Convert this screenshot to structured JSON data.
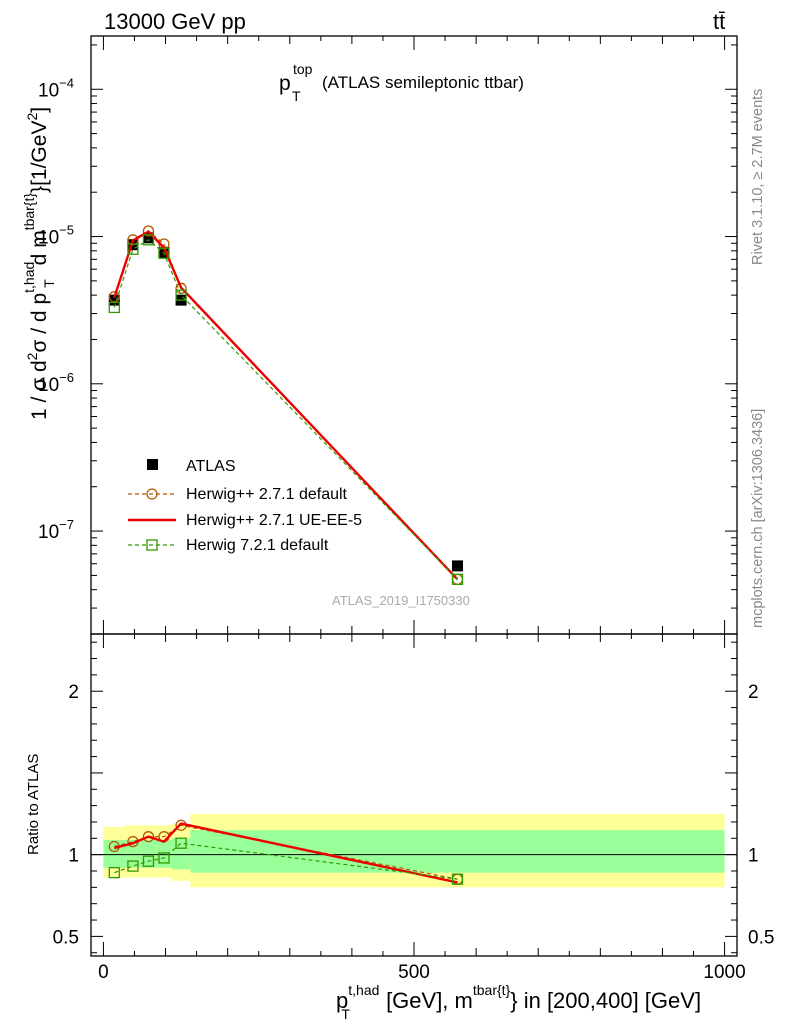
{
  "header": {
    "left": "13000 GeV pp",
    "right": "tt̄"
  },
  "side_texts": {
    "rivet": "Rivet 3.1.10, ≥ 2.7M events",
    "mcplots": "mcplots.cern.ch [arXiv:1306.3436]"
  },
  "plot": {
    "title_main": "p",
    "title_sub": "T",
    "title_sup": "top",
    "title_rest": "(ATLAS semileptonic ttbar)",
    "watermark": "ATLAS_2019_I1750330",
    "ylabel": "1 / σ d²σ / d p_T^{t,had} d m^{tbar{t}} [1/GeV²]",
    "ylabel_parts": {
      "a": "1 / σ d",
      "b": "2",
      "c": "σ / d p",
      "d": "t,had",
      "e": "T",
      "f": " d m",
      "g": "tbar{t}",
      "h": "}[1/GeV",
      "i": "2",
      "j": "]"
    },
    "ratio_ylabel": "Ratio to ATLAS",
    "xlabel_parts": {
      "a": "p",
      "b": "t,had",
      "c": "T",
      "d": " [GeV], m",
      "e": "tbar{t}",
      "f": "} in [200,400] [GeV]"
    },
    "legend": [
      {
        "label": "ATLAS",
        "color": "#000000"
      },
      {
        "label": "Herwig++ 2.7.1 default",
        "color": "#b35900"
      },
      {
        "label": "Herwig++ 2.7.1 UE-EE-5",
        "color": "#ee0000"
      },
      {
        "label": "Herwig 7.2.1 default",
        "color": "#339900"
      }
    ]
  },
  "chart_data": {
    "type": "line",
    "x_range": [
      -20,
      1020
    ],
    "y_range_main": [
      2e-08,
      0.00023
    ],
    "y_log": true,
    "y_range_ratio": [
      0.38,
      2.35
    ],
    "main_y_ticks": [
      {
        "value": 1e-07,
        "base": "10",
        "exp": "−7"
      },
      {
        "value": 1e-06,
        "base": "10",
        "exp": "−6"
      },
      {
        "value": 1e-05,
        "base": "10",
        "exp": "−5"
      },
      {
        "value": 0.0001,
        "base": "10",
        "exp": "−4"
      }
    ],
    "ratio_y_ticks": [
      {
        "value": 0.5,
        "label": "0.5"
      },
      {
        "value": 1,
        "label": "1"
      },
      {
        "value": 2,
        "label": "2"
      }
    ],
    "x_ticks": [
      {
        "value": 0,
        "label": "0"
      },
      {
        "value": 500,
        "label": "500"
      },
      {
        "value": 1000,
        "label": "1000"
      }
    ],
    "bins": [
      {
        "lo": 0,
        "hi": 35
      },
      {
        "lo": 35,
        "hi": 60
      },
      {
        "lo": 60,
        "hi": 85
      },
      {
        "lo": 85,
        "hi": 110
      },
      {
        "lo": 110,
        "hi": 140
      },
      {
        "lo": 140,
        "hi": 1000
      }
    ],
    "x": [
      17.5,
      47.5,
      72.5,
      97.5,
      125,
      570
    ],
    "series": [
      {
        "name": "ATLAS",
        "color": "#000000",
        "style": "data",
        "values": [
          3.7e-06,
          8.8e-06,
          9.8e-06,
          7.8e-06,
          3.7e-06,
          5.8e-08
        ]
      },
      {
        "name": "Herwig++ 2.7.1 default",
        "color": "#b35900",
        "style": "dashed-circle",
        "values": [
          3.9e-06,
          9.5e-06,
          1.09e-05,
          8.9e-06,
          4.45e-06,
          4.7e-08
        ],
        "ratio": [
          1.05,
          1.08,
          1.11,
          1.11,
          1.18,
          0.85
        ]
      },
      {
        "name": "Herwig++ 2.7.1 UE-EE-5",
        "color": "#ee0000",
        "style": "solid",
        "values": [
          3.85e-06,
          9.4e-06,
          1.08e-05,
          8.4e-06,
          4.5e-06,
          4.7e-08
        ],
        "ratio": [
          1.04,
          1.07,
          1.11,
          1.08,
          1.19,
          0.83
        ]
      },
      {
        "name": "Herwig 7.2.1 default",
        "color": "#339900",
        "style": "dashed-square",
        "values": [
          3.3e-06,
          8.2e-06,
          9.5e-06,
          7.7e-06,
          4e-06,
          4.7e-08
        ],
        "ratio": [
          0.89,
          0.93,
          0.96,
          0.98,
          1.07,
          0.85
        ]
      }
    ],
    "uncertainty_bands": {
      "inner": [
        [
          0.92,
          1.09
        ],
        [
          0.92,
          1.09
        ],
        [
          0.92,
          1.09
        ],
        [
          0.92,
          1.09
        ],
        [
          0.91,
          1.1
        ],
        [
          0.89,
          1.15
        ]
      ],
      "outer": [
        [
          0.86,
          1.17
        ],
        [
          0.86,
          1.18
        ],
        [
          0.86,
          1.18
        ],
        [
          0.86,
          1.18
        ],
        [
          0.84,
          1.19
        ],
        [
          0.8,
          1.25
        ]
      ]
    }
  }
}
